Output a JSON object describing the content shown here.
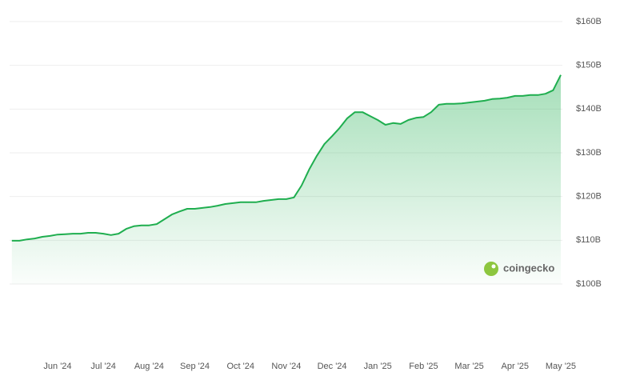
{
  "chart_data": {
    "type": "area",
    "watermark": "coingecko",
    "color": "#1fae4f",
    "grid": true,
    "ylim": [
      100,
      160
    ],
    "yticks": [
      {
        "value": 100,
        "label": "$100B"
      },
      {
        "value": 110,
        "label": "$110B"
      },
      {
        "value": 120,
        "label": "$120B"
      },
      {
        "value": 130,
        "label": "$130B"
      },
      {
        "value": 140,
        "label": "$140B"
      },
      {
        "value": 150,
        "label": "$150B"
      },
      {
        "value": 160,
        "label": "$160B"
      }
    ],
    "categories": [
      null,
      null,
      null,
      null,
      null,
      null,
      "Jun '24",
      null,
      null,
      null,
      null,
      null,
      "Jul '24",
      null,
      null,
      null,
      null,
      null,
      "Aug '24",
      null,
      null,
      null,
      null,
      null,
      "Sep '24",
      null,
      null,
      null,
      null,
      null,
      "Oct '24",
      null,
      null,
      null,
      null,
      null,
      "Nov '24",
      null,
      null,
      null,
      null,
      null,
      "Dec '24",
      null,
      null,
      null,
      null,
      null,
      "Jan '25",
      null,
      null,
      null,
      null,
      null,
      "Feb '25",
      null,
      null,
      null,
      null,
      null,
      "Mar '25",
      null,
      null,
      null,
      null,
      null,
      "Apr '25",
      null,
      null,
      null,
      null,
      null,
      "May '25"
    ],
    "values": [
      109.9,
      109.9,
      110.2,
      110.4,
      110.8,
      111.0,
      111.3,
      111.4,
      111.5,
      111.5,
      111.7,
      111.7,
      111.5,
      111.2,
      111.5,
      112.6,
      113.2,
      113.4,
      113.4,
      113.7,
      114.8,
      115.9,
      116.6,
      117.2,
      117.2,
      117.4,
      117.6,
      117.9,
      118.3,
      118.5,
      118.7,
      118.7,
      118.7,
      119.0,
      119.2,
      119.4,
      119.4,
      119.8,
      122.5,
      126.2,
      129.3,
      132.0,
      133.8,
      135.7,
      137.9,
      139.3,
      139.3,
      138.4,
      137.5,
      136.4,
      136.8,
      136.6,
      137.5,
      138.0,
      138.2,
      139.3,
      141.0,
      141.2,
      141.2,
      141.3,
      141.5,
      141.7,
      141.9,
      142.3,
      142.4,
      142.6,
      143.0,
      143.0,
      143.2,
      143.2,
      143.5,
      144.3,
      147.8
    ]
  }
}
